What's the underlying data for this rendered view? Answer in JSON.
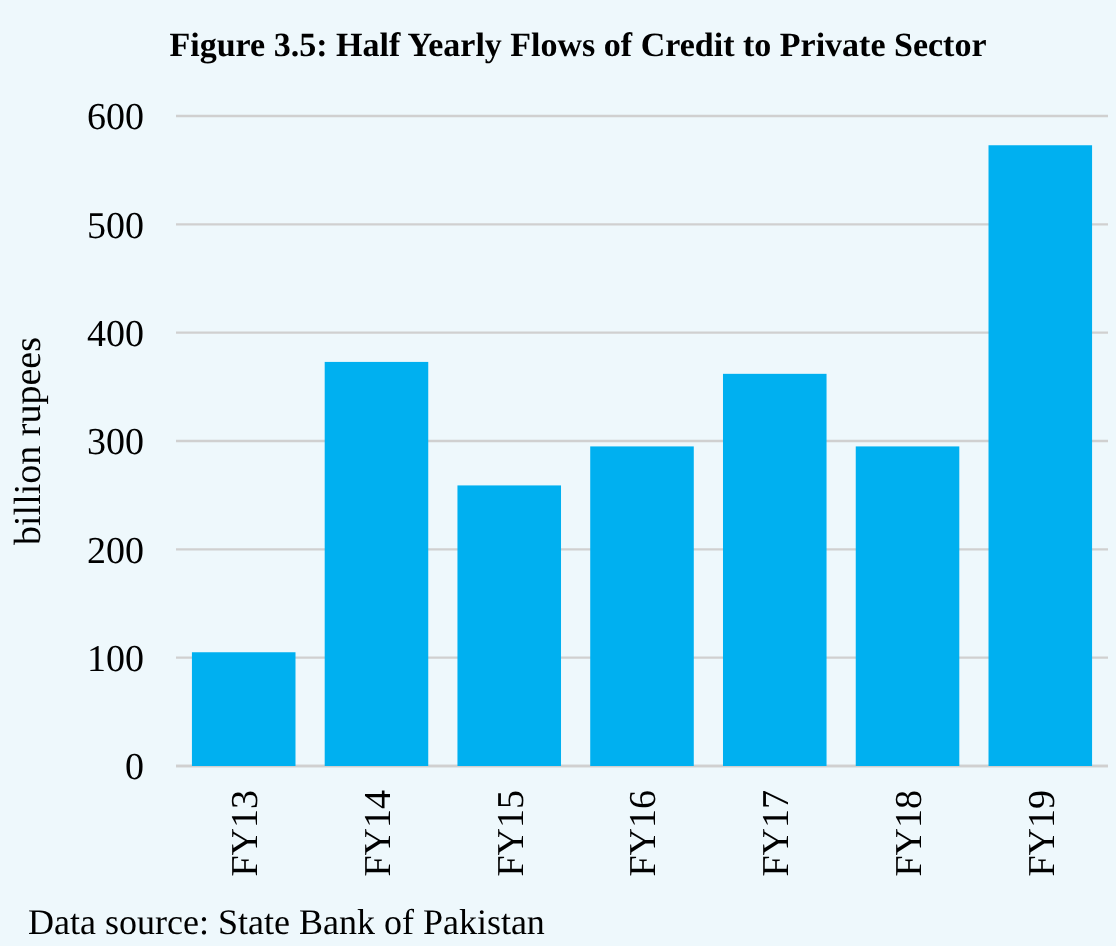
{
  "chart_data": {
    "type": "bar",
    "title": "Figure 3.5:  Half Yearly Flows of Credit to Private Sector",
    "ylabel": "billion rupees",
    "categories": [
      "FY13",
      "FY14",
      "FY15",
      "FY16",
      "FY17",
      "FY18",
      "FY19"
    ],
    "values": [
      105,
      373,
      259,
      295,
      362,
      295,
      573
    ],
    "color": "#00b0f0",
    "ylim": [
      0,
      600
    ],
    "yticks": [
      0,
      100,
      200,
      300,
      400,
      500,
      600
    ],
    "grid": "y",
    "annotations": [
      "Data source: State Bank of Pakistan"
    ]
  }
}
